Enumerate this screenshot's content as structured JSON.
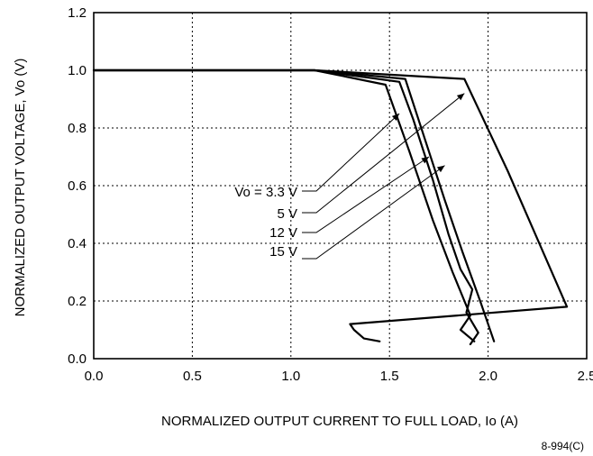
{
  "chart_data": {
    "type": "line",
    "xlabel": "NORMALIZED OUTPUT CURRENT TO FULL LOAD, Io (A)",
    "ylabel": "NORMALIZED OUTPUT VOLTAGE, Vo (V)",
    "xlim": [
      0.0,
      2.5
    ],
    "ylim": [
      0.0,
      1.2
    ],
    "xticks": [
      "0.0",
      "0.5",
      "1.0",
      "1.5",
      "2.0",
      "2.5"
    ],
    "yticks": [
      "0.0",
      "0.2",
      "0.4",
      "0.6",
      "0.8",
      "1.0",
      "1.2"
    ],
    "grid": true,
    "series": [
      {
        "name": "Vo = 3.3 V",
        "points": [
          [
            0,
            1.0
          ],
          [
            1.12,
            1.0
          ],
          [
            1.48,
            0.95
          ],
          [
            1.6,
            0.72
          ],
          [
            1.72,
            0.48
          ],
          [
            1.82,
            0.3
          ],
          [
            1.91,
            0.15
          ],
          [
            1.86,
            0.1
          ],
          [
            1.93,
            0.06
          ]
        ]
      },
      {
        "name": "5 V",
        "points": [
          [
            0,
            1.0
          ],
          [
            1.12,
            1.0
          ],
          [
            1.58,
            0.97
          ],
          [
            1.68,
            0.76
          ],
          [
            1.78,
            0.55
          ],
          [
            1.87,
            0.37
          ],
          [
            1.96,
            0.2
          ],
          [
            1.99,
            0.14
          ],
          [
            2.03,
            0.06
          ]
        ]
      },
      {
        "name": "12 V",
        "points": [
          [
            0,
            1.0
          ],
          [
            1.12,
            1.0
          ],
          [
            1.55,
            0.96
          ],
          [
            1.62,
            0.83
          ],
          [
            1.72,
            0.62
          ],
          [
            1.8,
            0.43
          ],
          [
            1.86,
            0.31
          ],
          [
            1.92,
            0.24
          ],
          [
            1.89,
            0.16
          ],
          [
            1.95,
            0.09
          ],
          [
            1.91,
            0.05
          ]
        ]
      },
      {
        "name": "15 V",
        "points": [
          [
            0,
            1.0
          ],
          [
            1.12,
            1.0
          ],
          [
            1.88,
            0.97
          ],
          [
            2.1,
            0.65
          ],
          [
            2.4,
            0.18
          ],
          [
            1.3,
            0.12
          ],
          [
            1.32,
            0.1
          ],
          [
            1.37,
            0.07
          ],
          [
            1.45,
            0.06
          ]
        ]
      }
    ],
    "annotations": [
      "Vo = 3.3 V",
      "5 V",
      "12 V",
      "15 V"
    ],
    "figure_id": "8-994(C)"
  }
}
